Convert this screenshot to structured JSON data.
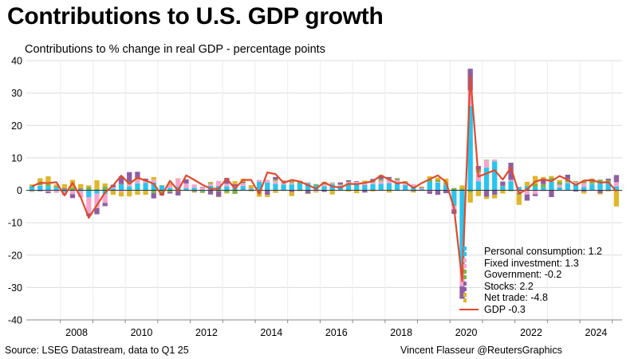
{
  "title": "Contributions to U.S. GDP growth",
  "subtitle": "Contributions to % change in real GDP - percentage points",
  "source": "Source: LSEG Datastream, data to Q1 25",
  "credit": "Vincent Flasseur @ReutersGraphics",
  "legend": {
    "pce": "Personal consumption: 1.2",
    "fi": "Fixed investment: 1.3",
    "gov": "Government: -0.2",
    "stocks": "Stocks: 2.2",
    "nx": "Net trade: -4.8",
    "gdp": "GDP -0.3"
  },
  "chart_data": {
    "type": "bar",
    "stacked": true,
    "x_start": "2007 Q1",
    "x_end": "2025 Q1",
    "ylim": [
      -40,
      40
    ],
    "yticks": [
      40,
      30,
      20,
      10,
      0,
      -10,
      -20,
      -30,
      -40
    ],
    "xticks": [
      "2008",
      "2010",
      "2012",
      "2014",
      "2016",
      "2018",
      "2020",
      "2022",
      "2024"
    ],
    "grid": true,
    "legend_position": "bottom-right",
    "colors": {
      "pce": "#29c5ef",
      "fi": "#f4a6cf",
      "gov": "#7cb342",
      "stocks": "#8e5ea2",
      "nx": "#e0b62a",
      "gdp": "#e04a2b"
    },
    "series": [
      {
        "name": "Personal consumption",
        "key": "pce",
        "values": [
          1.2,
          1.4,
          1.3,
          0.8,
          -0.5,
          0.1,
          -0.3,
          -2.1,
          -1.0,
          -1.1,
          0.5,
          1.8,
          1.2,
          2.1,
          2.3,
          2.4,
          1.5,
          0.7,
          1.1,
          0.6,
          0.8,
          -0.3,
          1.4,
          1.4,
          1.2,
          0.7,
          1.3,
          0.4,
          2.6,
          2.4,
          2.0,
          1.8,
          1.8,
          2.1,
          2.2,
          1.6,
          1.2,
          1.9,
          1.4,
          1.8,
          1.8,
          1.6,
          1.9,
          2.0,
          2.2,
          2.1,
          1.6,
          1.3,
          0.4,
          2.7,
          2.4,
          1.6,
          -4.8,
          -24.0,
          26.0,
          2.8,
          7.0,
          8.9,
          1.2,
          2.8,
          0.9,
          1.2,
          1.1,
          0.9,
          2.6,
          0.9,
          2.2,
          1.9,
          1.0,
          1.9,
          2.4,
          2.6,
          1.2
        ]
      },
      {
        "name": "Fixed investment",
        "key": "fi",
        "values": [
          -0.3,
          0.2,
          -0.4,
          -0.8,
          -1.0,
          -1.2,
          -1.9,
          -5.0,
          -4.5,
          -2.8,
          0.4,
          -0.5,
          0.7,
          1.2,
          0.5,
          0.9,
          0.0,
          1.0,
          2.5,
          1.5,
          1.0,
          0.8,
          0.6,
          1.5,
          0.8,
          0.5,
          0.9,
          0.2,
          0.6,
          0.8,
          0.9,
          0.7,
          0.5,
          0.0,
          0.3,
          -0.4,
          0.6,
          0.3,
          0.3,
          0.7,
          0.8,
          0.6,
          0.5,
          0.9,
          1.1,
          1.0,
          0.5,
          0.6,
          0.3,
          -0.2,
          0.2,
          0.1,
          -1.1,
          -5.6,
          4.8,
          2.7,
          2.2,
          0.6,
          -0.1,
          0.4,
          -0.9,
          -1.3,
          -1.2,
          -0.3,
          0.5,
          0.8,
          0.3,
          0.6,
          1.2,
          0.1,
          0.3,
          -0.3,
          1.3
        ]
      },
      {
        "name": "Government",
        "key": "gov",
        "values": [
          -0.2,
          0.8,
          0.6,
          0.4,
          0.3,
          0.7,
          0.4,
          1.0,
          0.4,
          1.2,
          -0.1,
          0.1,
          0.7,
          0.6,
          -0.2,
          -0.9,
          -1.0,
          -0.6,
          -0.2,
          0.0,
          -0.3,
          -0.5,
          0.3,
          -0.3,
          -0.7,
          -1.1,
          0.1,
          -0.3,
          -0.6,
          0.0,
          0.4,
          0.3,
          0.5,
          0.5,
          0.0,
          0.3,
          0.6,
          0.2,
          0.1,
          0.2,
          -0.1,
          0.2,
          0.5,
          0.5,
          0.3,
          0.4,
          0.4,
          -0.1,
          -0.1,
          0.6,
          0.6,
          0.6,
          0.7,
          0.5,
          -0.7,
          0.8,
          0.2,
          -0.1,
          0.2,
          -0.3,
          -0.5,
          0.2,
          0.9,
          1.0,
          0.8,
          0.9,
          1.0,
          0.3,
          0.7,
          0.8,
          0.6,
          0.5,
          -0.2
        ]
      },
      {
        "name": "Stocks",
        "key": "stocks",
        "values": [
          0.1,
          -0.3,
          -0.5,
          0.1,
          0.3,
          -1.2,
          0.2,
          -0.8,
          -1.9,
          -1.0,
          0.8,
          2.4,
          3.0,
          1.8,
          0.8,
          -1.6,
          -0.6,
          -0.4,
          -1.4,
          1.3,
          -0.2,
          0.2,
          -1.3,
          -1.7,
          1.8,
          0.7,
          0.3,
          0.1,
          -0.1,
          -1.4,
          0.8,
          0.2,
          -0.5,
          0.3,
          -1.0,
          0.0,
          -0.5,
          -0.1,
          0.6,
          0.4,
          0.2,
          -0.7,
          0.6,
          1.0,
          0.5,
          0.2,
          0.0,
          -0.2,
          0.2,
          -0.9,
          -1.4,
          -0.9,
          -1.4,
          -3.9,
          6.7,
          1.2,
          -2.0,
          -1.3,
          1.3,
          5.3,
          0.1,
          -1.9,
          -0.6,
          1.5,
          -2.1,
          0.0,
          1.3,
          -0.4,
          -0.4,
          0.7,
          -0.9,
          0.5,
          2.2
        ]
      },
      {
        "name": "Net trade",
        "key": "nx",
        "values": [
          0.5,
          1.3,
          2.4,
          0.5,
          1.3,
          2.4,
          1.3,
          0.5,
          2.7,
          0.9,
          -1.3,
          -1.4,
          -1.9,
          -1.4,
          -1.2,
          0.8,
          0.1,
          0.4,
          0.1,
          -0.2,
          -0.2,
          0.0,
          0.3,
          -0.1,
          -0.3,
          0.9,
          1.0,
          0.9,
          -1.3,
          -0.7,
          -0.8,
          -0.2,
          -1.3,
          -0.3,
          -0.1,
          -0.3,
          0.2,
          -1.2,
          0.1,
          -0.4,
          -0.8,
          0.6,
          -0.4,
          0.3,
          -0.7,
          -0.1,
          0.3,
          -0.4,
          0.3,
          1.0,
          0.7,
          1.3,
          0.0,
          1.0,
          -3.1,
          -1.8,
          -0.7,
          -1.1,
          -0.9,
          0.0,
          -3.1,
          1.2,
          2.4,
          0.7,
          0.5,
          0.6,
          0.0,
          0.0,
          -0.6,
          0.1,
          -0.4,
          -0.1,
          -4.8
        ]
      }
    ],
    "line": {
      "name": "GDP",
      "key": "gdp",
      "values": [
        1.2,
        2.3,
        2.2,
        2.5,
        -1.6,
        2.3,
        -2.1,
        -8.5,
        -4.6,
        -0.7,
        1.5,
        4.5,
        2.0,
        3.9,
        3.0,
        2.0,
        -1.5,
        2.9,
        -0.1,
        4.6,
        3.2,
        1.7,
        0.5,
        0.5,
        3.6,
        0.5,
        3.2,
        3.2,
        -1.1,
        5.5,
        5.0,
        2.3,
        3.2,
        2.7,
        1.6,
        0.5,
        2.4,
        1.2,
        0.8,
        2.0,
        1.9,
        2.3,
        2.8,
        4.6,
        3.3,
        2.1,
        2.5,
        0.7,
        2.2,
        3.4,
        4.6,
        2.6,
        -5.5,
        -28.0,
        35.3,
        4.2,
        5.2,
        6.2,
        3.3,
        7.0,
        -1.0,
        0.3,
        2.7,
        3.4,
        2.8,
        4.4,
        3.2,
        1.6,
        3.0,
        3.1,
        2.4,
        2.5,
        -0.3
      ]
    }
  }
}
